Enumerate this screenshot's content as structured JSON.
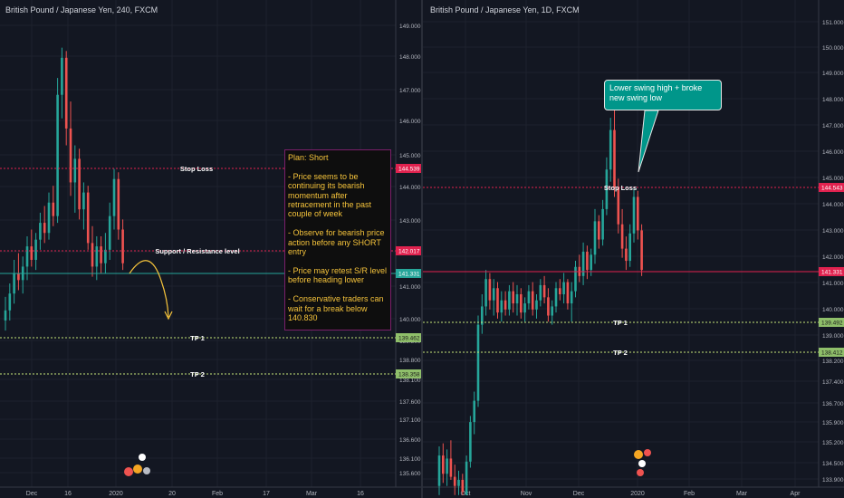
{
  "chart_data": [
    {
      "type": "candlestick",
      "title": "British Pound / Japanese Yen, 240, FXCM",
      "price_ticks": [
        "149.000",
        "148.000",
        "147.000",
        "146.000",
        "145.000",
        "144.000",
        "143.000",
        "142.000",
        "141.000",
        "140.000",
        "139.300",
        "138.800",
        "138.100",
        "137.600",
        "137.100",
        "136.600",
        "136.100",
        "135.600"
      ],
      "date_ticks": [
        "Dec",
        "16",
        "2020",
        "20",
        "Feb",
        "17",
        "Mar",
        "16"
      ],
      "levels": [
        {
          "name": "Stop Loss",
          "price": 144.539,
          "tag": "144.539",
          "color": "#e0224f",
          "style": "dotted"
        },
        {
          "name": "Support / Resistance level",
          "price": 142.017,
          "tag": "142.017",
          "color": "#e0224f",
          "style": "dotted"
        },
        {
          "name": "",
          "price": 141.331,
          "tag": "141.331",
          "color": "#26a69a",
          "style": "solid"
        },
        {
          "name": "TP 1",
          "price": 139.462,
          "tag": "139.462",
          "color": "#c5e478",
          "style": "dotted"
        },
        {
          "name": "TP 2",
          "price": 138.358,
          "tag": "138.358",
          "color": "#c5e478",
          "style": "dotted"
        }
      ],
      "candles_approx": [
        {
          "i": 0,
          "o": 139.8,
          "h": 140.5,
          "l": 139.5,
          "c": 140.1
        },
        {
          "i": 1,
          "o": 140.1,
          "h": 140.9,
          "l": 139.8,
          "c": 140.6
        },
        {
          "i": 2,
          "o": 140.6,
          "h": 141.6,
          "l": 140.3,
          "c": 141.2
        },
        {
          "i": 3,
          "o": 141.2,
          "h": 141.8,
          "l": 140.7,
          "c": 141.0
        },
        {
          "i": 4,
          "o": 141.0,
          "h": 141.7,
          "l": 140.6,
          "c": 141.4
        },
        {
          "i": 5,
          "o": 141.4,
          "h": 142.3,
          "l": 141.0,
          "c": 142.0
        },
        {
          "i": 6,
          "o": 142.0,
          "h": 142.5,
          "l": 141.4,
          "c": 141.6
        },
        {
          "i": 7,
          "o": 141.6,
          "h": 142.4,
          "l": 141.3,
          "c": 142.2
        },
        {
          "i": 8,
          "o": 142.2,
          "h": 143.0,
          "l": 141.9,
          "c": 142.7
        },
        {
          "i": 9,
          "o": 142.7,
          "h": 143.2,
          "l": 142.1,
          "c": 142.4
        },
        {
          "i": 10,
          "o": 142.4,
          "h": 143.6,
          "l": 142.2,
          "c": 143.3
        },
        {
          "i": 11,
          "o": 143.3,
          "h": 143.8,
          "l": 142.6,
          "c": 142.9
        },
        {
          "i": 12,
          "o": 142.9,
          "h": 147.0,
          "l": 142.7,
          "c": 146.5
        },
        {
          "i": 13,
          "o": 146.5,
          "h": 147.9,
          "l": 145.8,
          "c": 147.6
        },
        {
          "i": 14,
          "o": 147.6,
          "h": 147.8,
          "l": 145.0,
          "c": 145.5
        },
        {
          "i": 15,
          "o": 145.5,
          "h": 146.3,
          "l": 143.5,
          "c": 143.9
        },
        {
          "i": 16,
          "o": 143.9,
          "h": 145.0,
          "l": 143.0,
          "c": 144.6
        },
        {
          "i": 17,
          "o": 144.6,
          "h": 144.9,
          "l": 142.8,
          "c": 143.1
        },
        {
          "i": 18,
          "o": 143.1,
          "h": 143.9,
          "l": 142.5,
          "c": 143.6
        },
        {
          "i": 19,
          "o": 143.6,
          "h": 143.8,
          "l": 141.9,
          "c": 142.1
        },
        {
          "i": 20,
          "o": 142.1,
          "h": 142.6,
          "l": 141.1,
          "c": 141.4
        },
        {
          "i": 21,
          "o": 141.4,
          "h": 142.3,
          "l": 141.0,
          "c": 142.0
        },
        {
          "i": 22,
          "o": 142.0,
          "h": 142.3,
          "l": 141.2,
          "c": 141.5
        },
        {
          "i": 23,
          "o": 141.5,
          "h": 142.4,
          "l": 141.2,
          "c": 141.9
        },
        {
          "i": 24,
          "o": 141.9,
          "h": 143.3,
          "l": 141.6,
          "c": 142.9
        },
        {
          "i": 25,
          "o": 142.9,
          "h": 144.3,
          "l": 142.5,
          "c": 144.0
        },
        {
          "i": 26,
          "o": 144.0,
          "h": 144.2,
          "l": 142.2,
          "c": 142.5
        },
        {
          "i": 27,
          "o": 142.5,
          "h": 142.8,
          "l": 141.3,
          "c": 141.5
        }
      ]
    },
    {
      "type": "candlestick",
      "title": "British Pound / Japanese Yen, 1D, FXCM",
      "price_ticks": [
        "151.000",
        "150.000",
        "149.000",
        "148.000",
        "147.000",
        "146.000",
        "145.000",
        "144.000",
        "143.000",
        "142.000",
        "141.000",
        "140.000",
        "139.000",
        "138.200",
        "137.400",
        "136.700",
        "135.900",
        "135.200",
        "134.500",
        "133.900"
      ],
      "date_ticks": [
        "Oct",
        "Nov",
        "Dec",
        "2020",
        "Feb",
        "Mar",
        "Apr"
      ],
      "levels": [
        {
          "name": "Stop Loss",
          "price": 144.543,
          "tag": "144.543",
          "color": "#e0224f",
          "style": "dotted"
        },
        {
          "name": "",
          "price": 141.331,
          "tag": "141.331",
          "color": "#e0224f",
          "style": "solid"
        },
        {
          "name": "TP 1",
          "price": 139.492,
          "tag": "139.492",
          "color": "#c5e478",
          "style": "dotted"
        },
        {
          "name": "TP 2",
          "price": 138.412,
          "tag": "138.412",
          "color": "#c5e478",
          "style": "dotted"
        }
      ],
      "candles_approx": [
        {
          "i": 0,
          "o": 134.2,
          "h": 135.5,
          "l": 133.9,
          "c": 135.2
        },
        {
          "i": 1,
          "o": 135.2,
          "h": 135.6,
          "l": 134.3,
          "c": 134.6
        },
        {
          "i": 2,
          "o": 134.6,
          "h": 135.4,
          "l": 134.2,
          "c": 135.1
        },
        {
          "i": 3,
          "o": 135.1,
          "h": 135.7,
          "l": 134.4,
          "c": 134.5
        },
        {
          "i": 4,
          "o": 134.5,
          "h": 134.9,
          "l": 133.9,
          "c": 134.2
        },
        {
          "i": 5,
          "o": 134.2,
          "h": 134.7,
          "l": 133.9,
          "c": 134.4
        },
        {
          "i": 6,
          "o": 134.4,
          "h": 134.6,
          "l": 133.9,
          "c": 134.0
        },
        {
          "i": 7,
          "o": 133.9,
          "h": 135.2,
          "l": 133.9,
          "c": 135.0
        },
        {
          "i": 8,
          "o": 135.0,
          "h": 136.5,
          "l": 134.8,
          "c": 136.3
        },
        {
          "i": 9,
          "o": 136.3,
          "h": 137.3,
          "l": 135.9,
          "c": 137.0
        },
        {
          "i": 10,
          "o": 137.0,
          "h": 139.8,
          "l": 136.8,
          "c": 139.5
        },
        {
          "i": 11,
          "o": 139.5,
          "h": 140.5,
          "l": 139.2,
          "c": 140.1
        },
        {
          "i": 12,
          "o": 140.1,
          "h": 141.3,
          "l": 139.8,
          "c": 141.0
        },
        {
          "i": 13,
          "o": 141.0,
          "h": 141.2,
          "l": 140.0,
          "c": 140.3
        },
        {
          "i": 14,
          "o": 140.3,
          "h": 141.0,
          "l": 139.8,
          "c": 140.7
        },
        {
          "i": 15,
          "o": 140.7,
          "h": 140.9,
          "l": 139.7,
          "c": 139.9
        },
        {
          "i": 16,
          "o": 139.9,
          "h": 140.6,
          "l": 139.6,
          "c": 140.3
        },
        {
          "i": 17,
          "o": 140.3,
          "h": 140.6,
          "l": 139.8,
          "c": 140.0
        },
        {
          "i": 18,
          "o": 140.0,
          "h": 140.8,
          "l": 139.8,
          "c": 140.6
        },
        {
          "i": 19,
          "o": 140.6,
          "h": 140.9,
          "l": 139.9,
          "c": 140.2
        },
        {
          "i": 20,
          "o": 140.2,
          "h": 140.8,
          "l": 139.8,
          "c": 140.5
        },
        {
          "i": 21,
          "o": 140.5,
          "h": 140.7,
          "l": 139.7,
          "c": 139.9
        },
        {
          "i": 22,
          "o": 139.9,
          "h": 140.4,
          "l": 139.6,
          "c": 140.2
        },
        {
          "i": 23,
          "o": 140.2,
          "h": 140.8,
          "l": 140.0,
          "c": 140.6
        },
        {
          "i": 24,
          "o": 140.6,
          "h": 140.9,
          "l": 139.8,
          "c": 140.0
        },
        {
          "i": 25,
          "o": 140.0,
          "h": 140.5,
          "l": 139.7,
          "c": 140.3
        },
        {
          "i": 26,
          "o": 140.3,
          "h": 141.0,
          "l": 140.1,
          "c": 140.8
        },
        {
          "i": 27,
          "o": 140.8,
          "h": 141.1,
          "l": 140.2,
          "c": 140.4
        },
        {
          "i": 28,
          "o": 140.4,
          "h": 140.7,
          "l": 139.6,
          "c": 139.8
        },
        {
          "i": 29,
          "o": 139.8,
          "h": 140.3,
          "l": 139.5,
          "c": 140.1
        },
        {
          "i": 30,
          "o": 140.1,
          "h": 140.9,
          "l": 139.9,
          "c": 140.7
        },
        {
          "i": 31,
          "o": 140.7,
          "h": 141.0,
          "l": 140.3,
          "c": 140.5
        },
        {
          "i": 32,
          "o": 140.5,
          "h": 141.2,
          "l": 140.2,
          "c": 140.9
        },
        {
          "i": 33,
          "o": 140.9,
          "h": 141.0,
          "l": 140.0,
          "c": 140.2
        },
        {
          "i": 34,
          "o": 140.2,
          "h": 140.9,
          "l": 139.6,
          "c": 140.6
        },
        {
          "i": 35,
          "o": 140.6,
          "h": 141.6,
          "l": 140.4,
          "c": 141.4
        },
        {
          "i": 36,
          "o": 141.4,
          "h": 141.8,
          "l": 140.9,
          "c": 141.1
        },
        {
          "i": 37,
          "o": 141.1,
          "h": 142.2,
          "l": 140.8,
          "c": 141.9
        },
        {
          "i": 38,
          "o": 141.9,
          "h": 142.1,
          "l": 141.0,
          "c": 141.3
        },
        {
          "i": 39,
          "o": 141.3,
          "h": 142.0,
          "l": 141.1,
          "c": 141.8
        },
        {
          "i": 40,
          "o": 141.8,
          "h": 143.3,
          "l": 141.5,
          "c": 142.9
        },
        {
          "i": 41,
          "o": 142.9,
          "h": 143.1,
          "l": 142.0,
          "c": 142.3
        },
        {
          "i": 42,
          "o": 142.3,
          "h": 143.6,
          "l": 142.1,
          "c": 143.3
        },
        {
          "i": 43,
          "o": 143.3,
          "h": 145.0,
          "l": 143.1,
          "c": 144.6
        },
        {
          "i": 44,
          "o": 144.6,
          "h": 146.3,
          "l": 144.2,
          "c": 145.9
        },
        {
          "i": 45,
          "o": 145.9,
          "h": 147.0,
          "l": 143.7,
          "c": 144.0
        },
        {
          "i": 46,
          "o": 144.0,
          "h": 144.3,
          "l": 142.5,
          "c": 142.8
        },
        {
          "i": 47,
          "o": 142.8,
          "h": 143.3,
          "l": 141.7,
          "c": 142.0
        },
        {
          "i": 48,
          "o": 142.0,
          "h": 142.4,
          "l": 141.3,
          "c": 141.6
        },
        {
          "i": 49,
          "o": 141.6,
          "h": 142.8,
          "l": 141.4,
          "c": 142.5
        },
        {
          "i": 50,
          "o": 142.5,
          "h": 144.0,
          "l": 142.2,
          "c": 143.7
        },
        {
          "i": 51,
          "o": 143.7,
          "h": 143.9,
          "l": 142.3,
          "c": 142.6
        },
        {
          "i": 52,
          "o": 142.6,
          "h": 142.8,
          "l": 141.1,
          "c": 141.3
        }
      ]
    }
  ],
  "left": {
    "title": "British Pound / Japanese Yen, 240, FXCM",
    "note_text": "Plan: Short\n\n- Price seems to be continuing its bearish momentum after retracement in the past couple of week\n\n- Observe for bearish price action before any SHORT entry\n\n- Price may retest S/R level before heading lower\n\n- Conservative traders can wait for a break below 140.830"
  },
  "right": {
    "title": "British Pound / Japanese Yen, 1D, FXCM",
    "callout_text": "Lower swing high + broke new swing low"
  },
  "colors": {
    "background": "#131722",
    "up": "#26a69a",
    "down": "#ef5350",
    "level_red": "#e0224f",
    "level_green": "#c5e478",
    "note_border": "#7b1f6a",
    "note_text": "#f5c33b",
    "callout_bg": "#00968a",
    "arrow": "#f5c33b"
  }
}
